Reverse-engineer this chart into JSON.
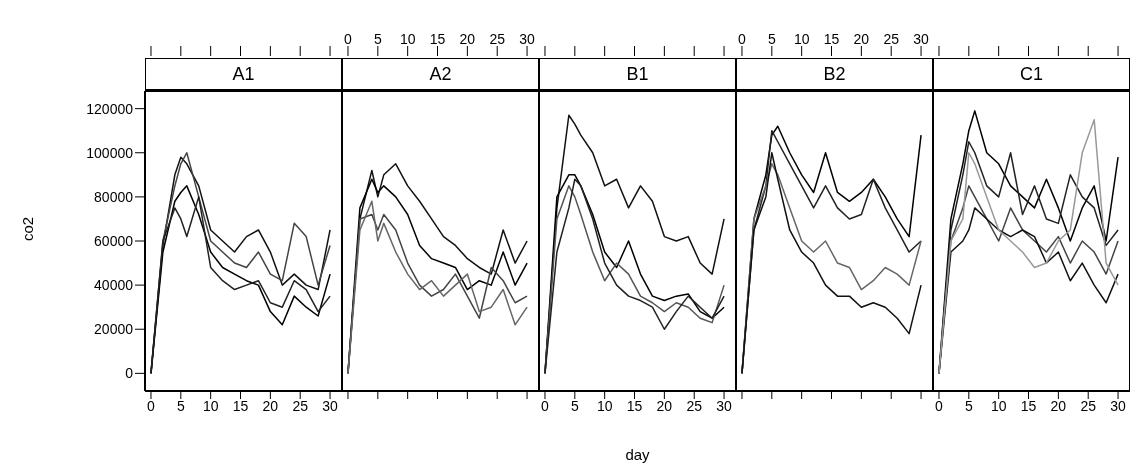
{
  "chart_data": [
    {
      "type": "line",
      "title": "A1",
      "ylabel": "co2",
      "x": [
        0,
        2,
        4,
        5,
        6,
        8,
        10,
        12,
        14,
        16,
        18,
        20,
        22,
        24,
        26,
        28,
        30
      ],
      "xlim": [
        -1,
        32
      ],
      "xticks": [
        0,
        5,
        10,
        15,
        20,
        25,
        30
      ],
      "ylim": [
        -8000,
        128000
      ],
      "yticks": [
        0,
        20000,
        40000,
        60000,
        80000,
        100000,
        120000
      ],
      "marker": "none",
      "line_style": "solid",
      "series": [
        {
          "color": "#111111",
          "values": [
            0,
            58000,
            90000,
            98000,
            95000,
            85000,
            65000,
            60000,
            55000,
            62000,
            65000,
            55000,
            40000,
            45000,
            40000,
            38000,
            65000
          ]
        },
        {
          "color": "#444444",
          "values": [
            0,
            60000,
            85000,
            95000,
            100000,
            80000,
            60000,
            55000,
            50000,
            48000,
            55000,
            45000,
            42000,
            68000,
            62000,
            40000,
            58000
          ]
        },
        {
          "color": "#000000",
          "values": [
            0,
            55000,
            78000,
            82000,
            85000,
            72000,
            55000,
            48000,
            45000,
            42000,
            40000,
            28000,
            22000,
            35000,
            30000,
            26000,
            45000
          ]
        },
        {
          "color": "#222222",
          "values": [
            0,
            60000,
            75000,
            70000,
            62000,
            80000,
            48000,
            42000,
            38000,
            40000,
            42000,
            32000,
            30000,
            42000,
            38000,
            28000,
            35000
          ]
        }
      ]
    },
    {
      "type": "line",
      "title": "A2",
      "x": [
        0,
        2,
        4,
        5,
        6,
        8,
        10,
        12,
        14,
        16,
        18,
        20,
        22,
        24,
        26,
        28,
        30
      ],
      "xlim": [
        -1,
        32
      ],
      "xticks": [
        0,
        5,
        10,
        15,
        20,
        25,
        30
      ],
      "x2lim": [
        -1,
        32
      ],
      "x2ticks": [
        0,
        5,
        10,
        15,
        20,
        25,
        30
      ],
      "ylim": [
        -8000,
        128000
      ],
      "yticks": [
        0,
        20000,
        40000,
        60000,
        80000,
        100000,
        120000
      ],
      "tick_labels": false,
      "marker": "none",
      "line_style": "solid",
      "series": [
        {
          "color": "#111111",
          "values": [
            0,
            70000,
            92000,
            80000,
            90000,
            95000,
            85000,
            78000,
            70000,
            62000,
            58000,
            52000,
            48000,
            45000,
            65000,
            50000,
            60000
          ]
        },
        {
          "color": "#000000",
          "values": [
            0,
            75000,
            88000,
            82000,
            85000,
            80000,
            72000,
            58000,
            52000,
            50000,
            48000,
            38000,
            42000,
            40000,
            55000,
            40000,
            50000
          ]
        },
        {
          "color": "#444444",
          "values": [
            0,
            70000,
            72000,
            65000,
            72000,
            65000,
            50000,
            40000,
            35000,
            38000,
            45000,
            35000,
            25000,
            48000,
            42000,
            32000,
            35000
          ]
        },
        {
          "color": "#666666",
          "values": [
            0,
            65000,
            78000,
            60000,
            68000,
            55000,
            45000,
            38000,
            42000,
            35000,
            40000,
            45000,
            28000,
            30000,
            38000,
            22000,
            30000
          ]
        }
      ]
    },
    {
      "type": "line",
      "title": "B1",
      "xlabel": "day",
      "x": [
        0,
        2,
        4,
        5,
        6,
        8,
        10,
        12,
        14,
        16,
        18,
        20,
        22,
        24,
        26,
        28,
        30
      ],
      "xlim": [
        -1,
        32
      ],
      "xticks": [
        0,
        5,
        10,
        15,
        20,
        25,
        30
      ],
      "ylim": [
        -8000,
        128000
      ],
      "yticks": [
        0,
        20000,
        40000,
        60000,
        80000,
        100000,
        120000
      ],
      "tick_labels": "x",
      "marker": "none",
      "line_style": "solid",
      "series": [
        {
          "color": "#111111",
          "values": [
            0,
            75000,
            117000,
            113000,
            108000,
            100000,
            85000,
            88000,
            75000,
            85000,
            78000,
            62000,
            60000,
            62000,
            50000,
            45000,
            70000
          ]
        },
        {
          "color": "#000000",
          "values": [
            0,
            80000,
            90000,
            90000,
            85000,
            72000,
            55000,
            48000,
            60000,
            45000,
            35000,
            33000,
            35000,
            36000,
            28000,
            25000,
            30000
          ]
        },
        {
          "color": "#555555",
          "values": [
            0,
            70000,
            85000,
            80000,
            72000,
            55000,
            42000,
            50000,
            45000,
            35000,
            32000,
            28000,
            32000,
            30000,
            25000,
            23000,
            40000
          ]
        },
        {
          "color": "#222222",
          "values": [
            0,
            55000,
            75000,
            88000,
            85000,
            70000,
            50000,
            40000,
            35000,
            33000,
            30000,
            20000,
            28000,
            35000,
            30000,
            25000,
            35000
          ]
        }
      ]
    },
    {
      "type": "line",
      "title": "B2",
      "x": [
        0,
        2,
        4,
        5,
        6,
        8,
        10,
        12,
        14,
        16,
        18,
        20,
        22,
        24,
        26,
        28,
        30
      ],
      "xlim": [
        -1,
        32
      ],
      "xticks": [
        0,
        5,
        10,
        15,
        20,
        25,
        30
      ],
      "x2lim": [
        -1,
        32
      ],
      "x2ticks": [
        0,
        5,
        10,
        15,
        20,
        25,
        30
      ],
      "ylim": [
        -8000,
        128000
      ],
      "yticks": [
        0,
        20000,
        40000,
        60000,
        80000,
        100000,
        120000
      ],
      "tick_labels": false,
      "marker": "none",
      "line_style": "solid",
      "series": [
        {
          "color": "#000000",
          "values": [
            0,
            70000,
            90000,
            108000,
            112000,
            100000,
            90000,
            82000,
            100000,
            82000,
            78000,
            82000,
            88000,
            80000,
            70000,
            62000,
            108000
          ]
        },
        {
          "color": "#222222",
          "values": [
            0,
            65000,
            85000,
            110000,
            105000,
            95000,
            85000,
            75000,
            85000,
            75000,
            70000,
            72000,
            88000,
            75000,
            65000,
            55000,
            60000
          ]
        },
        {
          "color": "#666666",
          "values": [
            0,
            70000,
            85000,
            95000,
            90000,
            75000,
            60000,
            55000,
            60000,
            50000,
            48000,
            38000,
            42000,
            48000,
            45000,
            40000,
            60000
          ]
        },
        {
          "color": "#111111",
          "values": [
            0,
            65000,
            80000,
            100000,
            88000,
            65000,
            55000,
            50000,
            40000,
            35000,
            35000,
            30000,
            32000,
            30000,
            25000,
            18000,
            40000
          ]
        }
      ]
    },
    {
      "type": "line",
      "title": "C1",
      "x": [
        0,
        2,
        4,
        5,
        6,
        8,
        10,
        12,
        14,
        16,
        18,
        20,
        22,
        24,
        26,
        28,
        30
      ],
      "xlim": [
        -1,
        32
      ],
      "xticks": [
        0,
        5,
        10,
        15,
        20,
        25,
        30
      ],
      "ylim": [
        -8000,
        128000
      ],
      "yticks": [
        0,
        20000,
        40000,
        60000,
        80000,
        100000,
        120000
      ],
      "tick_labels": "x",
      "marker": "none",
      "line_style": "solid",
      "series": [
        {
          "color": "#000000",
          "values": [
            0,
            70000,
            95000,
            110000,
            119000,
            100000,
            95000,
            85000,
            80000,
            75000,
            88000,
            75000,
            60000,
            75000,
            85000,
            60000,
            98000
          ]
        },
        {
          "color": "#222222",
          "values": [
            0,
            65000,
            90000,
            105000,
            100000,
            85000,
            80000,
            100000,
            72000,
            85000,
            70000,
            68000,
            90000,
            80000,
            75000,
            58000,
            65000
          ]
        },
        {
          "color": "#444444",
          "values": [
            0,
            60000,
            75000,
            85000,
            80000,
            70000,
            60000,
            75000,
            65000,
            60000,
            55000,
            62000,
            50000,
            60000,
            55000,
            45000,
            60000
          ]
        },
        {
          "color": "#111111",
          "values": [
            0,
            55000,
            60000,
            65000,
            75000,
            70000,
            65000,
            62000,
            65000,
            62000,
            50000,
            55000,
            42000,
            50000,
            40000,
            32000,
            45000
          ]
        },
        {
          "color": "#999999",
          "values": [
            0,
            60000,
            70000,
            100000,
            95000,
            80000,
            65000,
            60000,
            55000,
            48000,
            50000,
            60000,
            65000,
            100000,
            115000,
            50000,
            40000
          ]
        }
      ]
    }
  ]
}
